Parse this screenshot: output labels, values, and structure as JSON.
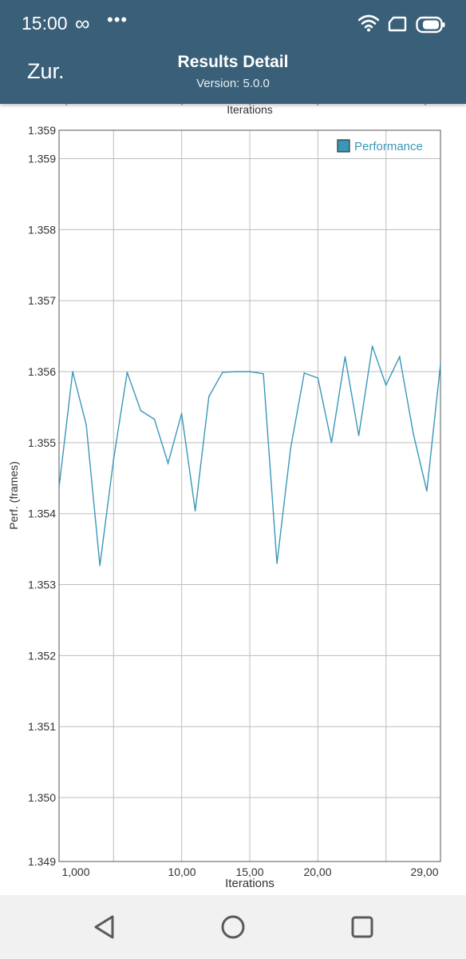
{
  "status_bar": {
    "time": "15:00",
    "infinity_glyph": "∞",
    "more_dots": "•••",
    "icons": [
      "wifi-icon",
      "sim-icon",
      "battery-icon"
    ]
  },
  "app_bar": {
    "back_label": "Zur.",
    "title": "Results Detail",
    "subtitle": "Version: 5.0.0",
    "background_color": "#3a5f78"
  },
  "chart_data": {
    "type": "line",
    "title": "",
    "top_axis_label": "Iterations",
    "xlabel": "Iterations",
    "ylabel": "Perf. (frames)",
    "x_tick_labels": [
      "1,000",
      "10,00",
      "15,00",
      "20,00",
      "29,00"
    ],
    "y_tick_labels": [
      "1.359",
      "1.359",
      "1.358",
      "1.357",
      "1.356",
      "1.355",
      "1.354",
      "1.353",
      "1.352",
      "1.351",
      "1.350",
      "1.349"
    ],
    "xlim": [
      1,
      29
    ],
    "ylim": [
      1.3491,
      1.3594
    ],
    "grid": true,
    "legend": "top-right",
    "line_color": "#3a97b8",
    "series": [
      {
        "name": "Performance",
        "x": [
          1,
          2,
          3,
          4,
          5,
          6,
          7,
          8,
          9,
          10,
          11,
          12,
          13,
          14,
          15,
          16,
          17,
          18,
          19,
          20,
          21,
          22,
          23,
          24,
          25,
          26,
          27,
          28,
          29
        ],
        "values": [
          1.35437,
          1.356,
          1.35525,
          1.35327,
          1.35476,
          1.35599,
          1.35545,
          1.35533,
          1.35471,
          1.35541,
          1.35404,
          1.35565,
          1.35599,
          1.356,
          1.356,
          1.35597,
          1.3533,
          1.35492,
          1.35598,
          1.35591,
          1.355,
          1.35621,
          1.3551,
          1.35636,
          1.35581,
          1.35621,
          1.35513,
          1.35432,
          1.3561
        ]
      }
    ]
  },
  "nav_bar": {
    "icons": [
      "back-triangle-icon",
      "home-circle-icon",
      "recents-square-icon"
    ]
  }
}
